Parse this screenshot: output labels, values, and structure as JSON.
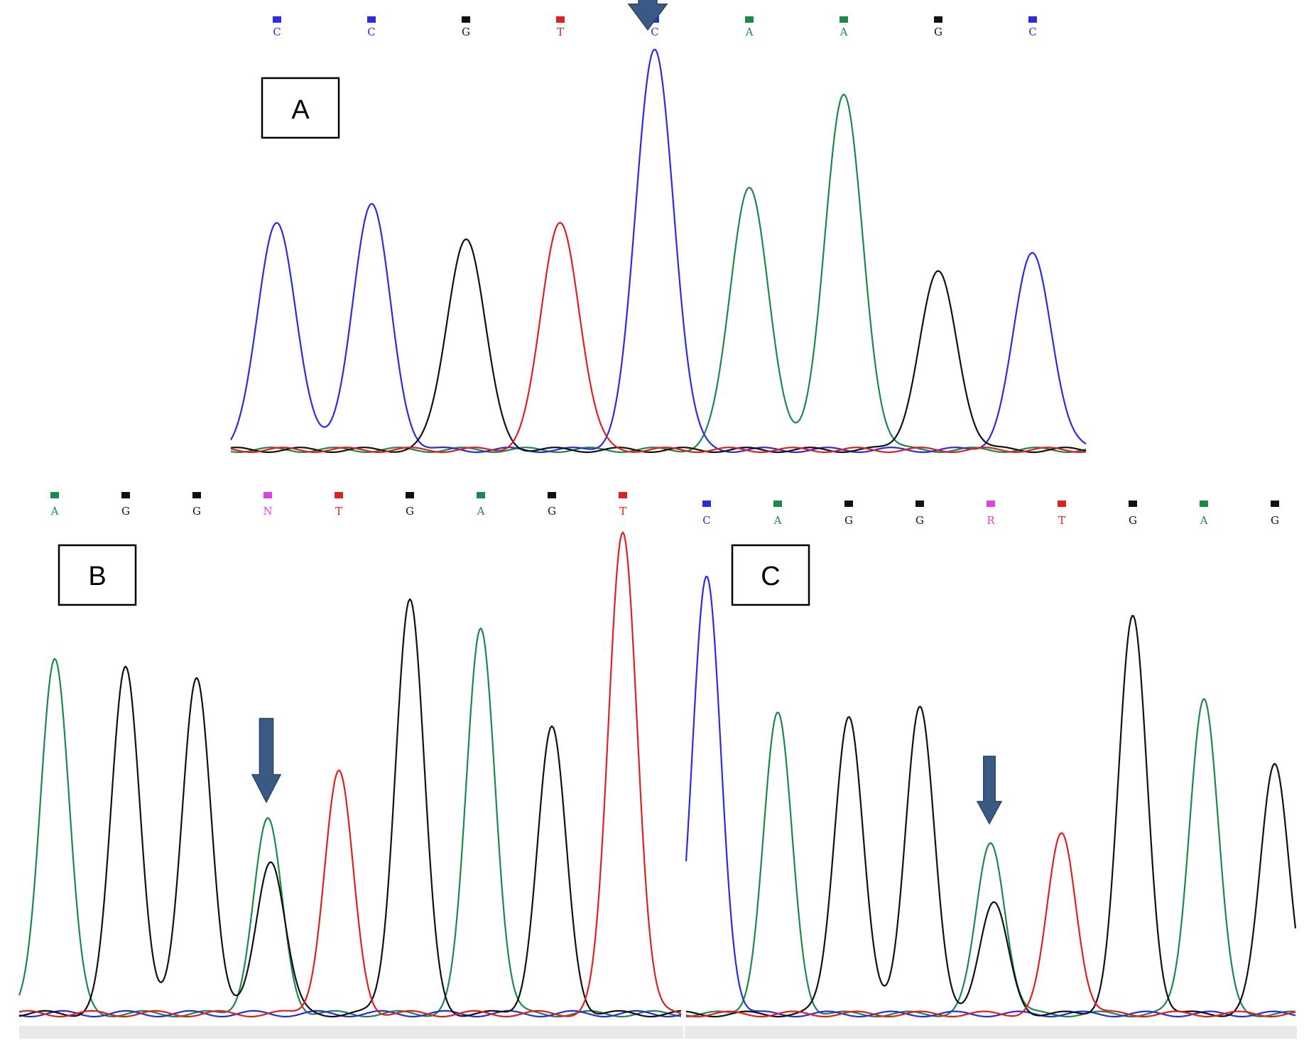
{
  "colors": {
    "A": "#1a8a4a",
    "C": "#2b2be0",
    "G": "#111111",
    "T": "#e02020",
    "N": "#e040e0",
    "R": "#e040e0",
    "arrow": "#3a5a84"
  },
  "chart_data": [
    {
      "type": "line",
      "panel_label": "A",
      "title": "",
      "bases": [
        "C",
        "C",
        "G",
        "T",
        "C",
        "A",
        "A",
        "G",
        "C"
      ],
      "heterozygous_position": null,
      "arrow_at_base_index": 4,
      "peaks": [
        {
          "base": "C",
          "height": 0.57
        },
        {
          "base": "C",
          "height": 0.61
        },
        {
          "base": "G",
          "height": 0.53
        },
        {
          "base": "T",
          "height": 0.57
        },
        {
          "base": "C",
          "height": 1.0
        },
        {
          "base": "A",
          "height": 0.66
        },
        {
          "base": "A",
          "height": 0.88
        },
        {
          "base": "G",
          "height": 0.44
        },
        {
          "base": "C",
          "height": 0.49
        }
      ],
      "secondary_peaks": []
    },
    {
      "type": "line",
      "panel_label": "B",
      "title": "",
      "bases": [
        "A",
        "G",
        "G",
        "N",
        "T",
        "G",
        "A",
        "G",
        "T"
      ],
      "heterozygous_position": 3,
      "arrow_at_base_index": 3,
      "peaks": [
        {
          "base": "A",
          "height": 0.74
        },
        {
          "base": "G",
          "height": 0.72
        },
        {
          "base": "G",
          "height": 0.7
        },
        {
          "base": "A",
          "height": 0.4
        },
        {
          "base": "T",
          "height": 0.5
        },
        {
          "base": "G",
          "height": 0.86
        },
        {
          "base": "A",
          "height": 0.8
        },
        {
          "base": "G",
          "height": 0.59
        },
        {
          "base": "T",
          "height": 1.0
        }
      ],
      "secondary_peaks": [
        {
          "at_base_index": 3,
          "base": "G",
          "height": 0.32
        }
      ]
    },
    {
      "type": "line",
      "panel_label": "C",
      "title": "",
      "bases": [
        "C",
        "A",
        "G",
        "G",
        "R",
        "T",
        "G",
        "A",
        "G"
      ],
      "heterozygous_position": 4,
      "arrow_at_base_index": 4,
      "peaks": [
        {
          "base": "C",
          "height": 0.99
        },
        {
          "base": "A",
          "height": 0.68
        },
        {
          "base": "G",
          "height": 0.68
        },
        {
          "base": "G",
          "height": 0.7
        },
        {
          "base": "A",
          "height": 0.39
        },
        {
          "base": "T",
          "height": 0.41
        },
        {
          "base": "G",
          "height": 0.9
        },
        {
          "base": "A",
          "height": 0.72
        },
        {
          "base": "G",
          "height": 0.57
        }
      ],
      "secondary_peaks": [
        {
          "at_base_index": 4,
          "base": "G",
          "height": 0.25
        }
      ]
    }
  ]
}
